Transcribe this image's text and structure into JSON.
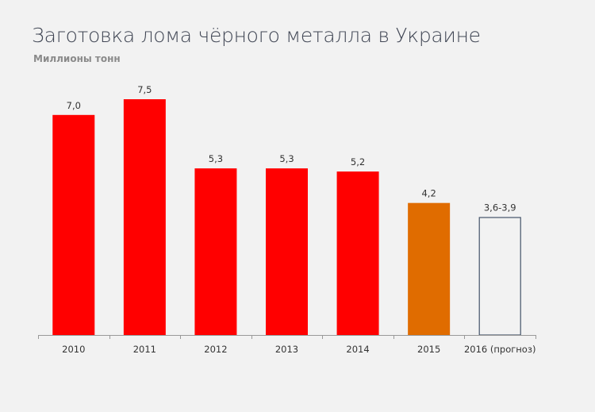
{
  "chart_data": {
    "type": "bar",
    "title": "Заготовка лома чёрного металла в Украине",
    "subtitle": "Миллионы тонн",
    "xlabel": "",
    "ylabel": "",
    "ylim": [
      0,
      7.5
    ],
    "grid": false,
    "categories": [
      "2010",
      "2011",
      "2012",
      "2013",
      "2014",
      "2015",
      "2016 (прогноз)"
    ],
    "values": [
      7.0,
      7.5,
      5.3,
      5.3,
      5.2,
      4.2,
      3.75
    ],
    "data_labels": [
      "7,0",
      "7,5",
      "5,3",
      "5,3",
      "5,2",
      "4,2",
      "3,6-3,9"
    ],
    "bar_styles": [
      "filled",
      "filled",
      "filled",
      "filled",
      "filled",
      "filled",
      "outline"
    ],
    "colors": [
      "#ff0000",
      "#ff0000",
      "#ff0000",
      "#ff0000",
      "#ff0000",
      "#e06c00",
      "#44546a"
    ]
  }
}
